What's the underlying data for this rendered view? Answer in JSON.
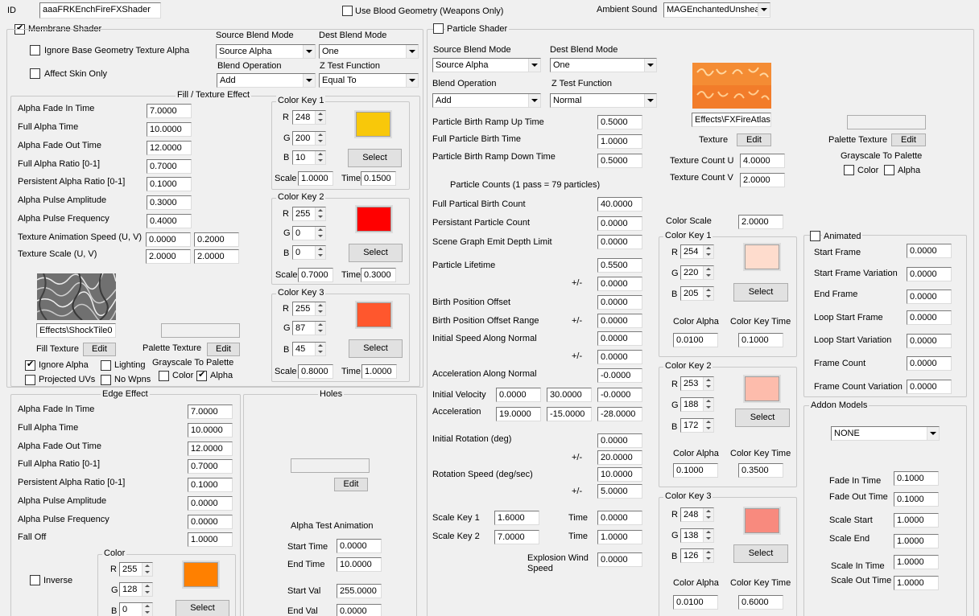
{
  "top": {
    "id_label": "ID",
    "id_value": "aaaFRKEnchFireFXShader",
    "blood_label": "Use Blood Geometry (Weapons Only)",
    "ambient_label": "Ambient Sound",
    "ambient_value": "MAGEnchantedUnsheat"
  },
  "membrane": {
    "title": "Membrane Shader",
    "ignore_alpha": "Ignore Base Geometry Texture Alpha",
    "affect_skin": "Affect Skin Only",
    "src_blend_label": "Source Blend Mode",
    "src_blend": "Source Alpha",
    "dst_blend_label": "Dest Blend Mode",
    "dst_blend": "One",
    "blend_op_label": "Blend Operation",
    "blend_op": "Add",
    "ztest_label": "Z Test Function",
    "ztest": "Equal To",
    "fill": {
      "title": "Fill / Texture Effect",
      "rows": [
        {
          "label": "Alpha Fade In Time",
          "v": "7.0000"
        },
        {
          "label": "Full Alpha Time",
          "v": "10.0000"
        },
        {
          "label": "Alpha Fade Out Time",
          "v": "12.0000"
        },
        {
          "label": "Full Alpha Ratio [0-1]",
          "v": "0.7000"
        },
        {
          "label": "Persistent Alpha Ratio [0-1]",
          "v": "0.1000"
        },
        {
          "label": "Alpha Pulse Amplitude",
          "v": "0.3000"
        },
        {
          "label": "Alpha Pulse Frequency",
          "v": "0.4000"
        }
      ],
      "anim_label": "Texture Animation Speed (U, V)",
      "anim_u": "0.0000",
      "anim_v": "0.2000",
      "scale_label": "Texture Scale (U, V)",
      "scale_u": "2.0000",
      "scale_v": "2.0000",
      "tex_path": "Effects\\ShockTile0",
      "fill_tex_label": "Fill Texture",
      "edit": "Edit",
      "palette_label": "Palette Texture",
      "ignore_alpha": "Ignore Alpha",
      "lighting": "Lighting",
      "projected": "Projected UVs",
      "no_wpns": "No Wpns",
      "gray_label": "Grayscale To Palette",
      "color": "Color",
      "alpha": "Alpha"
    },
    "keys": [
      {
        "title": "Color Key 1",
        "r": "248",
        "g": "200",
        "b": "10",
        "scale": "1.0000",
        "time": "0.1500",
        "color": "#f8c80a"
      },
      {
        "title": "Color Key 2",
        "r": "255",
        "g": "0",
        "b": "0",
        "scale": "0.7000",
        "time": "0.3000",
        "color": "#ff0000"
      },
      {
        "title": "Color Key 3",
        "r": "255",
        "g": "87",
        "b": "45",
        "scale": "0.8000",
        "time": "1.0000",
        "color": "#ff572d"
      }
    ],
    "edge": {
      "title": "Edge Effect",
      "rows": [
        {
          "label": "Alpha Fade In Time",
          "v": "7.0000"
        },
        {
          "label": "Full Alpha Time",
          "v": "10.0000"
        },
        {
          "label": "Alpha Fade Out Time",
          "v": "12.0000"
        },
        {
          "label": "Full Alpha Ratio [0-1]",
          "v": "0.7000"
        },
        {
          "label": "Persistent Alpha Ratio [0-1]",
          "v": "0.1000"
        },
        {
          "label": "Alpha Pulse Amplitude",
          "v": "0.0000"
        },
        {
          "label": "Alpha Pulse Frequency",
          "v": "0.0000"
        },
        {
          "label": "Fall Off",
          "v": "1.0000"
        }
      ],
      "color_title": "Color",
      "inverse": "Inverse",
      "r": "255",
      "g": "128",
      "b": "0",
      "color": "#ff8000"
    },
    "holes": {
      "title": "Holes",
      "edit": "Edit",
      "anim_title": "Alpha Test Animation",
      "start_time_label": "Start Time",
      "start_time": "0.0000",
      "end_time_label": "End Time",
      "end_time": "10.0000",
      "start_val_label": "Start Val",
      "start_val": "255.0000",
      "end_val_label": "End Val",
      "end_val": "0.0000"
    }
  },
  "particle": {
    "title": "Particle Shader",
    "src_blend_label": "Source Blend Mode",
    "src_blend": "Source Alpha",
    "dst_blend_label": "Dest Blend Mode",
    "dst_blend": "One",
    "blend_op_label": "Blend Operation",
    "blend_op": "Add",
    "ztest_label": "Z Test Function",
    "ztest": "Normal",
    "ramp_up_label": "Particle Birth Ramp Up Time",
    "ramp_up": "0.5000",
    "full_birth_label": "Full Particle Birth Time",
    "full_birth": "1.0000",
    "ramp_down_label": "Particle Birth Ramp Down Time",
    "ramp_down": "0.5000",
    "counts_label": "Particle Counts (1 pass = 79 particles)",
    "full_count_label": "Full Partical Birth Count",
    "full_count": "40.0000",
    "persist_label": "Persistant Particle Count",
    "persist": "0.0000",
    "depth_label": "Scene Graph Emit Depth Limit",
    "depth": "0.0000",
    "lifetime_label": "Particle Lifetime",
    "lifetime": "0.5500",
    "pm": "+/-",
    "lifetime_var": "0.0000",
    "birth_off_label": "Birth Position Offset",
    "birth_off": "0.0000",
    "birth_range_label": "Birth Position Offset Range",
    "birth_range": "0.0000",
    "init_speed_label": "Initial Speed Along Normal",
    "init_speed": "0.0000",
    "init_speed_var": "0.0000",
    "accel_normal_label": "Acceleration Along Normal",
    "accel_normal": "-0.0000",
    "init_vel_label": "Initial Velocity",
    "vel_x": "0.0000",
    "vel_y": "30.0000",
    "vel_z": "-0.0000",
    "accel_label": "Acceleration",
    "acc_x": "19.0000",
    "acc_y": "-15.0000",
    "acc_z": "-28.0000",
    "init_rot_label": "Initial Rotation (deg)",
    "init_rot": "0.0000",
    "init_rot_var": "20.0000",
    "rot_speed_label": "Rotation Speed (deg/sec)",
    "rot_speed": "10.0000",
    "rot_speed_var": "5.0000",
    "scale_key1_label": "Scale Key 1",
    "scale_key1": "1.6000",
    "scale_key2_label": "Scale Key 2",
    "scale_key2": "7.0000",
    "time_label": "Time",
    "time1": "0.0000",
    "time2": "1.0000",
    "explosion_label": "Explosion Wind Speed",
    "explosion": "0.0000",
    "tex_path": "Effects\\FXFireAtlas",
    "texture_label": "Texture",
    "edit": "Edit",
    "count_u_label": "Texture Count U",
    "count_u": "4.0000",
    "count_v_label": "Texture Count V",
    "count_v": "2.0000",
    "palette_label": "Palette Texture",
    "gray_label": "Grayscale To Palette",
    "color": "Color",
    "alpha": "Alpha",
    "color_scale_label": "Color Scale",
    "color_scale": "2.0000",
    "keys": [
      {
        "title": "Color Key 1",
        "r": "254",
        "g": "220",
        "b": "205",
        "alpha": "0.0100",
        "time": "0.1000",
        "color": "#fedccd"
      },
      {
        "title": "Color Key 2",
        "r": "253",
        "g": "188",
        "b": "172",
        "alpha": "0.1000",
        "time": "0.3500",
        "color": "#fdbcac"
      },
      {
        "title": "Color Key 3",
        "r": "248",
        "g": "138",
        "b": "126",
        "alpha": "0.0100",
        "time": "0.6000",
        "color": "#f88a7e"
      }
    ],
    "color_alpha_label": "Color Alpha",
    "color_key_time_label": "Color Key Time",
    "select": "Select",
    "animated": {
      "title": "Animated",
      "rows": [
        {
          "label": "Start Frame",
          "v": "0.0000"
        },
        {
          "label": "Start Frame Variation",
          "v": "0.0000"
        },
        {
          "label": "End Frame",
          "v": "0.0000"
        },
        {
          "label": "Loop Start Frame",
          "v": "0.0000"
        },
        {
          "label": "Loop Start Variation",
          "v": "0.0000"
        },
        {
          "label": "Frame Count",
          "v": "0.0000"
        },
        {
          "label": "Frame Count Variation",
          "v": "0.0000"
        }
      ]
    },
    "addon": {
      "title": "Addon Models",
      "model": "NONE",
      "fade_in_label": "Fade In Time",
      "fade_in": "0.1000",
      "fade_out_label": "Fade Out Time",
      "fade_out": "0.1000",
      "scale_start_label": "Scale Start",
      "scale_start": "1.0000",
      "scale_end_label": "Scale End",
      "scale_end": "1.0000",
      "scale_in_label": "Scale In Time",
      "scale_in": "1.0000",
      "scale_out_label": "Scale Out Time",
      "scale_out": "1.0000"
    }
  }
}
